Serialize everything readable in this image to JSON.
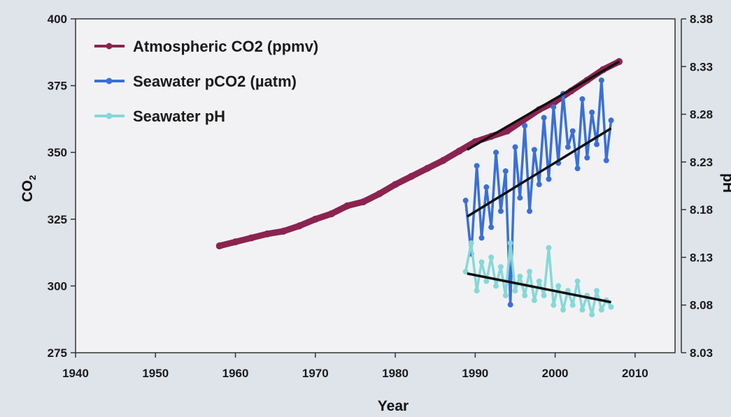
{
  "chart_data": {
    "type": "line",
    "xlabel": "Year",
    "ylabel": "CO2",
    "y2label": "pH",
    "xlim": [
      1940,
      2015
    ],
    "ylim": [
      275,
      400
    ],
    "y2lim": [
      8.03,
      8.38
    ],
    "xticks": [
      "1940",
      "1950",
      "1960",
      "1970",
      "1980",
      "1990",
      "2000",
      "2010"
    ],
    "yticks": [
      "275",
      "300",
      "325",
      "350",
      "375",
      "400"
    ],
    "y2ticks": [
      "8.03",
      "8.08",
      "8.13",
      "8.18",
      "8.23",
      "8.28",
      "8.33",
      "8.38"
    ],
    "legend_position": "top-left",
    "grid": false,
    "series": [
      {
        "name": "Atmospheric CO2 (ppmv)",
        "axis": "left",
        "color": "#8b2350",
        "x": [
          1958,
          1960,
          1962,
          1964,
          1966,
          1968,
          1970,
          1972,
          1974,
          1976,
          1978,
          1980,
          1982,
          1984,
          1986,
          1988,
          1990,
          1992,
          1994,
          1996,
          1998,
          2000,
          2002,
          2004,
          2006,
          2008
        ],
        "values": [
          315.0,
          316.5,
          318.0,
          319.5,
          320.5,
          322.5,
          325.0,
          327.0,
          330.0,
          331.5,
          334.5,
          338.0,
          341.0,
          344.0,
          347.0,
          350.5,
          354.0,
          356.0,
          358.0,
          362.0,
          366.0,
          369.0,
          373.0,
          377.0,
          381.0,
          384.0
        ]
      },
      {
        "name": "Seawater pCO2 (µatm)",
        "axis": "left",
        "color": "#3a6fd8",
        "x": [
          1988.8,
          1989.5,
          1990.2,
          1990.8,
          1991.4,
          1992.0,
          1992.6,
          1993.2,
          1993.8,
          1994.4,
          1995.0,
          1995.6,
          1996.2,
          1996.8,
          1997.4,
          1998.0,
          1998.6,
          1999.2,
          1999.8,
          2000.4,
          2001.0,
          2001.6,
          2002.2,
          2002.8,
          2003.4,
          2004.0,
          2004.6,
          2005.2,
          2005.8,
          2006.4,
          2007.0
        ],
        "values": [
          332,
          312,
          345,
          318,
          337,
          322,
          350,
          328,
          343,
          293,
          352,
          333,
          360,
          328,
          351,
          338,
          363,
          340,
          367,
          346,
          372,
          352,
          358,
          344,
          370,
          348,
          365,
          353,
          377,
          347,
          362
        ]
      },
      {
        "name": "Seawater pH",
        "axis": "right",
        "color": "#86d8d8",
        "x": [
          1988.8,
          1989.5,
          1990.2,
          1990.8,
          1991.4,
          1992.0,
          1992.6,
          1993.2,
          1993.8,
          1994.4,
          1995.0,
          1995.6,
          1996.2,
          1996.8,
          1997.4,
          1998.0,
          1998.6,
          1999.2,
          1999.8,
          2000.4,
          2001.0,
          2001.6,
          2002.2,
          2002.8,
          2003.4,
          2004.0,
          2004.6,
          2005.2,
          2005.8,
          2006.4,
          2007.0
        ],
        "values": [
          8.115,
          8.145,
          8.095,
          8.125,
          8.105,
          8.13,
          8.1,
          8.12,
          8.09,
          8.145,
          8.095,
          8.11,
          8.09,
          8.115,
          8.085,
          8.105,
          8.09,
          8.14,
          8.08,
          8.1,
          8.075,
          8.095,
          8.08,
          8.105,
          8.075,
          8.09,
          8.07,
          8.095,
          8.075,
          8.085,
          8.078
        ]
      }
    ],
    "trendlines": [
      {
        "axis": "left",
        "color": "#111111",
        "x": [
          1989,
          2008
        ],
        "values": [
          351,
          384
        ]
      },
      {
        "axis": "left",
        "color": "#111111",
        "x": [
          1989,
          2007
        ],
        "values": [
          326,
          359
        ]
      },
      {
        "axis": "right",
        "color": "#111111",
        "x": [
          1989,
          2007
        ],
        "values": [
          8.113,
          8.083
        ]
      }
    ]
  }
}
